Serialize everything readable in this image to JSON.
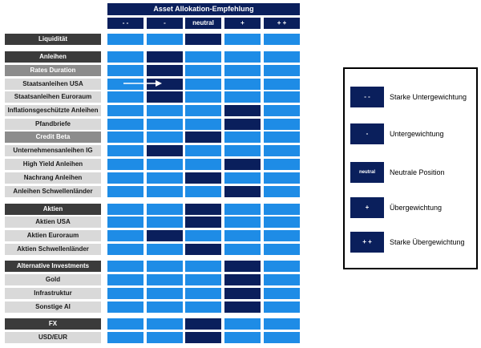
{
  "header": {
    "title": "Asset Allokation-Empfehlung",
    "columns": [
      "- -",
      "-",
      "neutral",
      "+",
      "+ +"
    ]
  },
  "rows": [
    {
      "label": "Liquidität",
      "style": "section",
      "selected": 2
    },
    {
      "label": "Anleihen",
      "style": "section",
      "selected": 1
    },
    {
      "label": "Rates Duration",
      "style": "subhead",
      "selected": 1
    },
    {
      "label": "Staatsanleihen USA",
      "style": "item",
      "selected": 1,
      "arrow": true
    },
    {
      "label": "Staatsanleihen Euroraum",
      "style": "item",
      "selected": 1
    },
    {
      "label": "Inflationsgeschützte Anleihen",
      "style": "item",
      "selected": 3
    },
    {
      "label": "Pfandbriefe",
      "style": "item",
      "selected": 3
    },
    {
      "label": "Credit Beta",
      "style": "subhead",
      "selected": 2
    },
    {
      "label": "Unternehmensanleihen IG",
      "style": "item",
      "selected": 1
    },
    {
      "label": "High Yield Anleihen",
      "style": "item",
      "selected": 3
    },
    {
      "label": "Nachrang Anleihen",
      "style": "item",
      "selected": 2
    },
    {
      "label": "Anleihen Schwellenländer",
      "style": "item",
      "selected": 3
    },
    {
      "label": "Aktien",
      "style": "section",
      "selected": 2
    },
    {
      "label": "Aktien USA",
      "style": "item",
      "selected": 2
    },
    {
      "label": "Aktien Euroraum",
      "style": "item",
      "selected": 1
    },
    {
      "label": "Aktien Schwellenländer",
      "style": "item",
      "selected": 2
    },
    {
      "label": "Alternative Investments",
      "style": "section",
      "selected": 3
    },
    {
      "label": "Gold",
      "style": "item",
      "selected": 3
    },
    {
      "label": "Infrastruktur",
      "style": "item",
      "selected": 3
    },
    {
      "label": "Sonstige AI",
      "style": "item",
      "selected": 3
    },
    {
      "label": "FX",
      "style": "section",
      "selected": 2
    },
    {
      "label": "USD/EUR",
      "style": "item",
      "selected": 2
    }
  ],
  "legend": [
    {
      "symbol": "- -",
      "text": "Starke Untergewichtung"
    },
    {
      "symbol": "-",
      "text": "Untergewichtung"
    },
    {
      "symbol": "neutral",
      "text": "Neutrale Position"
    },
    {
      "symbol": "+",
      "text": "Übergewichtung"
    },
    {
      "symbol": "+ +",
      "text": "Starke Übergewichtung"
    }
  ],
  "colors": {
    "cell": "#1e8ce6",
    "selected": "#0a1f5c",
    "section": "#3b3b3b",
    "subhead": "#8c8c8c",
    "item": "#d9d9d9"
  }
}
